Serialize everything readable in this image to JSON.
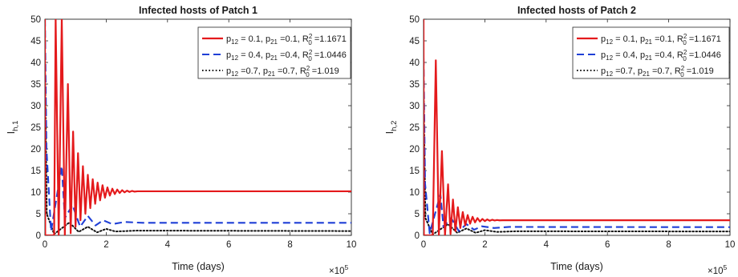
{
  "chart_data": [
    {
      "type": "line",
      "title": "Infected hosts of Patch 1",
      "xlabel": "Time (days)",
      "ylabel": "I",
      "ylabel_sub": "h,1",
      "x_multiplier_base": "×10",
      "x_multiplier_exp": "5",
      "xlim": [
        0,
        10
      ],
      "ylim": [
        0,
        50
      ],
      "xticks": [
        "0",
        "2",
        "4",
        "6",
        "8",
        "10"
      ],
      "yticks": [
        "0",
        "5",
        "10",
        "15",
        "20",
        "25",
        "30",
        "35",
        "40",
        "45",
        "50"
      ],
      "grid": false,
      "legend_position": "top-right",
      "series": [
        {
          "name": "p12 = 0.1, p21 = 0.1, R0² = 1.1671",
          "legend": {
            "p1": "p",
            "s1": "12",
            "t1": " = 0.1, ",
            "p2": "p",
            "s2": "21",
            "t2": " =0.1, ",
            "r": "R",
            "rsup": "2",
            "rsub": "0",
            "t3": " =1.1671"
          },
          "color": "#e41a1c",
          "dash": "solid",
          "equilibrium": 10.2,
          "peaks": [
            [
              0.35,
              50
            ],
            [
              0.55,
              50
            ],
            [
              0.75,
              35
            ],
            [
              0.92,
              24
            ],
            [
              1.08,
              19
            ],
            [
              1.24,
              16
            ],
            [
              1.4,
              14
            ],
            [
              1.56,
              13
            ],
            [
              1.72,
              12.2
            ],
            [
              1.88,
              11.6
            ],
            [
              2.04,
              11.1
            ],
            [
              2.2,
              10.8
            ],
            [
              2.36,
              10.6
            ],
            [
              2.52,
              10.45
            ],
            [
              2.68,
              10.35
            ],
            [
              2.84,
              10.28
            ]
          ],
          "troughs": [
            [
              0.45,
              0
            ],
            [
              0.65,
              0
            ],
            [
              0.84,
              0.5
            ],
            [
              1.0,
              2
            ],
            [
              1.16,
              3.5
            ],
            [
              1.32,
              5
            ],
            [
              1.48,
              6.3
            ],
            [
              1.64,
              7.3
            ],
            [
              1.8,
              8.1
            ],
            [
              1.96,
              8.7
            ],
            [
              2.12,
              9.2
            ],
            [
              2.28,
              9.55
            ],
            [
              2.44,
              9.8
            ],
            [
              2.6,
              9.95
            ],
            [
              2.76,
              10.05
            ],
            [
              2.92,
              10.12
            ]
          ],
          "values": {
            "x": [
              0,
              0.01,
              0.3,
              3.0,
              10
            ],
            "y": [
              50,
              0,
              0,
              10.2,
              10.2
            ]
          }
        },
        {
          "name": "p12 = 0.4, p21 = 0.4, R0² = 1.0446",
          "legend": {
            "p1": "p",
            "s1": "12",
            "t1": " = 0.4, ",
            "p2": "p",
            "s2": "21",
            "t2": " =0.4, ",
            "r": "R",
            "rsup": "2",
            "rsub": "0",
            "t3": " =1.0446"
          },
          "color": "#1f3fd6",
          "dash": "dashed",
          "equilibrium": 2.9,
          "values": {
            "x": [
              0,
              0.05,
              0.2,
              0.55,
              0.65,
              0.9,
              1.15,
              1.4,
              1.65,
              1.9,
              2.2,
              2.6,
              3.2,
              10
            ],
            "y": [
              50,
              20,
              1,
              16,
              4,
              7,
              2,
              4.5,
              2.3,
              3.5,
              2.6,
              3.1,
              2.9,
              2.9
            ]
          }
        },
        {
          "name": "p12 = 0.7, p21 = 0.7, R0² = 1.019",
          "legend": {
            "p1": "p",
            "s1": "12",
            "t1": " =0.7, ",
            "p2": "p",
            "s2": "21",
            "t2": " =0.7, ",
            "r": "R",
            "rsup": "2",
            "rsub": "0",
            "t3": " =1.019"
          },
          "color": "#111111",
          "dash": "dotted",
          "equilibrium": 1.0,
          "values": {
            "x": [
              0,
              0.06,
              0.3,
              0.8,
              1.1,
              1.4,
              1.7,
              2.0,
              2.3,
              3.0,
              10
            ],
            "y": [
              42,
              5,
              0.3,
              3,
              0.8,
              2,
              0.7,
              1.5,
              0.9,
              1.1,
              1.0
            ]
          }
        }
      ]
    },
    {
      "type": "line",
      "title": "Infected hosts of Patch 2",
      "xlabel": "Time (days)",
      "ylabel": "I",
      "ylabel_sub": "h,2",
      "x_multiplier_base": "×10",
      "x_multiplier_exp": "5",
      "xlim": [
        0,
        10
      ],
      "ylim": [
        0,
        50
      ],
      "xticks": [
        "0",
        "2",
        "4",
        "6",
        "8",
        "10"
      ],
      "yticks": [
        "0",
        "5",
        "10",
        "15",
        "20",
        "25",
        "30",
        "35",
        "40",
        "45",
        "50"
      ],
      "grid": false,
      "legend_position": "top-right",
      "series": [
        {
          "name": "p12 = 0.1, p21 = 0.1, R0² = 1.1671",
          "legend": {
            "p1": "p",
            "s1": "12",
            "t1": " = 0.1, ",
            "p2": "p",
            "s2": "21",
            "t2": " =0.1, ",
            "r": "R",
            "rsup": "2",
            "rsub": "0",
            "t3": " =1.1671"
          },
          "color": "#e41a1c",
          "dash": "solid",
          "equilibrium": 3.5,
          "peaks": [
            [
              0.4,
              40.5
            ],
            [
              0.6,
              19.5
            ],
            [
              0.8,
              11.8
            ],
            [
              0.96,
              8.3
            ],
            [
              1.12,
              6.5
            ],
            [
              1.28,
              5.4
            ],
            [
              1.44,
              4.7
            ],
            [
              1.6,
              4.3
            ],
            [
              1.76,
              4.0
            ],
            [
              1.92,
              3.8
            ],
            [
              2.08,
              3.7
            ],
            [
              2.24,
              3.62
            ],
            [
              2.4,
              3.56
            ]
          ],
          "troughs": [
            [
              0.5,
              0
            ],
            [
              0.7,
              0
            ],
            [
              0.88,
              0.3
            ],
            [
              1.04,
              1.0
            ],
            [
              1.2,
              1.7
            ],
            [
              1.36,
              2.3
            ],
            [
              1.52,
              2.7
            ],
            [
              1.68,
              3.0
            ],
            [
              1.84,
              3.2
            ],
            [
              2.0,
              3.3
            ],
            [
              2.16,
              3.38
            ],
            [
              2.32,
              3.44
            ],
            [
              2.48,
              3.47
            ]
          ],
          "values": {
            "x": [
              0,
              0.01,
              0.3,
              2.6,
              10
            ],
            "y": [
              50,
              0,
              0,
              3.5,
              3.5
            ]
          }
        },
        {
          "name": "p12 = 0.4, p21 = 0.4, R0² = 1.0446",
          "legend": {
            "p1": "p",
            "s1": "12",
            "t1": " = 0.4, ",
            "p2": "p",
            "s2": "21",
            "t2": " =0.4, ",
            "r": "R",
            "rsup": "2",
            "rsub": "0",
            "t3": " =1.0446"
          },
          "color": "#1f3fd6",
          "dash": "dashed",
          "equilibrium": 1.9,
          "values": {
            "x": [
              0,
              0.05,
              0.2,
              0.55,
              0.65,
              0.9,
              1.15,
              1.4,
              1.65,
              1.9,
              2.3,
              2.8,
              10
            ],
            "y": [
              41,
              12,
              0.5,
              9.5,
              2,
              4,
              1,
              2.6,
              1.3,
              2.1,
              1.7,
              1.95,
              1.9
            ]
          }
        },
        {
          "name": "p12 = 0.7, p21 = 0.7, R0² = 1.019",
          "legend": {
            "p1": "p",
            "s1": "12",
            "t1": " =0.7, ",
            "p2": "p",
            "s2": "21",
            "t2": " =0.7, ",
            "r": "R",
            "rsup": "2",
            "rsub": "0",
            "t3": " =1.019"
          },
          "color": "#111111",
          "dash": "dotted",
          "equilibrium": 0.9,
          "values": {
            "x": [
              0,
              0.06,
              0.3,
              0.8,
              1.1,
              1.4,
              1.7,
              2.0,
              2.4,
              3.0,
              10
            ],
            "y": [
              35,
              4,
              0.2,
              2.6,
              0.6,
              1.6,
              0.6,
              1.2,
              0.8,
              0.95,
              0.9
            ]
          }
        }
      ]
    }
  ]
}
